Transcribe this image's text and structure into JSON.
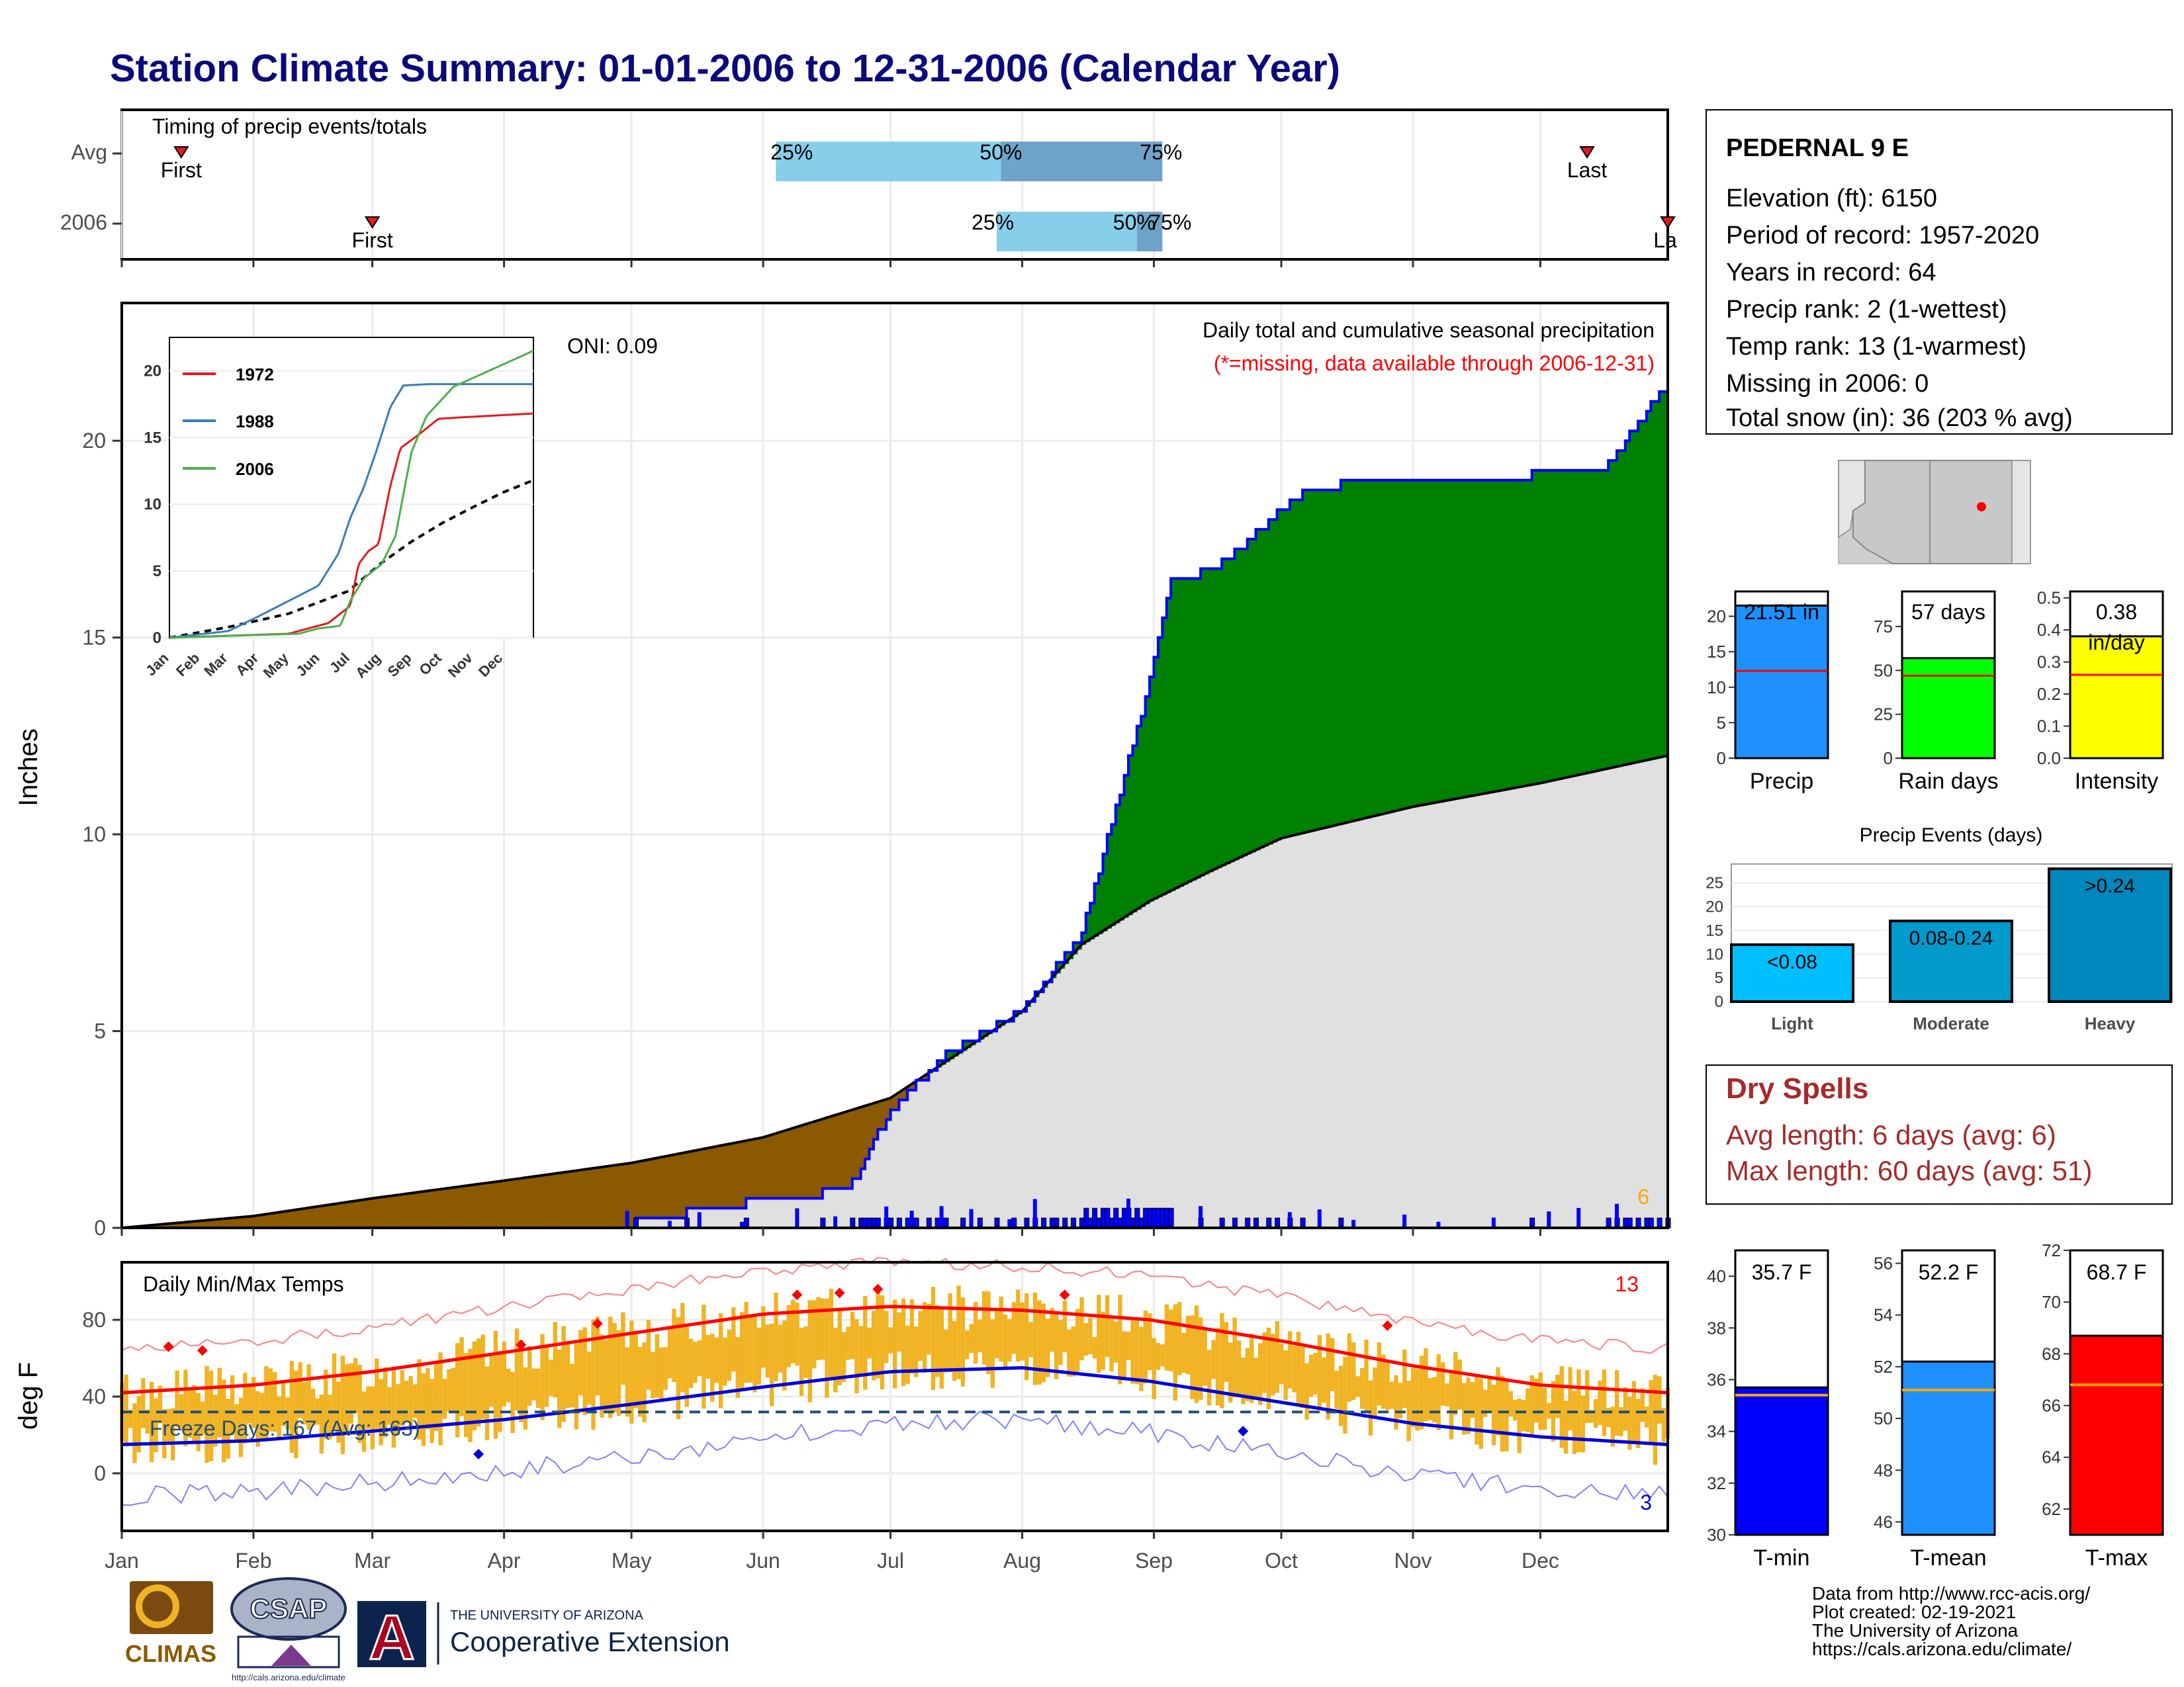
{
  "title": "Station Climate Summary: 01-01-2006 to 12-31-2006 (Calendar Year)",
  "station": {
    "name": "PEDERNAL 9 E",
    "lines": [
      "Elevation (ft): 6150",
      "Period of record: 1957-2020",
      "Years in record: 64",
      "Precip rank: 2 (1-wettest)",
      "Temp rank: 13 (1-warmest)",
      "Missing in 2006: 0",
      "Total snow (in): 36 (203 % avg)"
    ]
  },
  "months": [
    "Jan",
    "Feb",
    "Mar",
    "Apr",
    "May",
    "Jun",
    "Jul",
    "Aug",
    "Sep",
    "Oct",
    "Nov",
    "Dec"
  ],
  "timing": {
    "title": "Timing of precip events/totals",
    "row_labels": [
      "Avg",
      "2006"
    ],
    "first_label": "First",
    "last_label": "Last",
    "last_label_cut": "La",
    "avg": {
      "first_day": 15,
      "last_day": 346,
      "p25_day": 155,
      "p50_day": 208,
      "p75_day": 246
    },
    "year": {
      "first_day": 60,
      "last_day": 365,
      "p25_day": 207,
      "p50_day": 240,
      "p75_day": 246
    },
    "pct_labels": [
      "25%",
      "50%",
      "75%"
    ],
    "colors": {
      "light": "#87ceeb",
      "mid": "#6fa3c9",
      "marker": "#e31a1c"
    }
  },
  "precip_panel": {
    "ylabel": "Inches",
    "yticks": [
      0,
      5,
      10,
      15,
      20
    ],
    "ymax": 23.5,
    "header": "Daily total and cumulative seasonal precipitation",
    "missing_note": "(*=missing, data available through 2006-12-31)",
    "oni": "ONI: 0.09",
    "count_label": "6",
    "colors": {
      "above": "#008000",
      "below": "#8b5a00",
      "normal": "#e0e0e0",
      "observed": "#0000ff",
      "count": "#ffa500",
      "missing_note": "#ff0000"
    }
  },
  "inset": {
    "xlabels": [
      "Jan",
      "Feb",
      "Mar",
      "Apr",
      "May",
      "Jun",
      "Jul",
      "Aug",
      "Sep",
      "Oct",
      "Nov",
      "Dec"
    ],
    "yticks": [
      0,
      5,
      10,
      15,
      20
    ],
    "legend": [
      {
        "year": "1972",
        "color": "#e31a1c"
      },
      {
        "year": "1988",
        "color": "#377eb8"
      },
      {
        "year": "2006",
        "color": "#4daf4a"
      }
    ]
  },
  "temp_panel": {
    "ylabel": "deg F",
    "title": "Daily Min/Max Temps",
    "yticks": [
      0,
      40,
      80
    ],
    "freeze_text": "Freeze Days: 167 (Avg: 163)",
    "record_high_count": "13",
    "record_low_count": "3",
    "colors": {
      "bars": "#f0b323",
      "max_line": "#ff0000",
      "min_line": "#0000dd",
      "freeze_line": "#1f4e79"
    }
  },
  "bar_panels": [
    {
      "key": "precip",
      "label": "Precip",
      "value_text": "21.51 in",
      "value": 21.51,
      "avg": 12.3,
      "ymax": 23.5,
      "yticks": [
        "0",
        "5",
        "10",
        "15",
        "20"
      ],
      "ytick_vals": [
        0,
        5,
        10,
        15,
        20
      ],
      "color": "#1e90ff"
    },
    {
      "key": "raindays",
      "label": "Rain days",
      "value_text": "57 days",
      "value": 57,
      "avg": 47,
      "ymax": 95,
      "yticks": [
        "0",
        "25",
        "50",
        "75"
      ],
      "ytick_vals": [
        0,
        25,
        50,
        75
      ],
      "color": "#00ff00"
    },
    {
      "key": "intensity",
      "label": "Intensity",
      "value_text": "0.38",
      "value_text2": "in/day",
      "value": 0.38,
      "avg": 0.26,
      "ymax": 0.52,
      "yticks": [
        "0.0",
        "0.1",
        "0.2",
        "0.3",
        "0.4",
        "0.5"
      ],
      "ytick_vals": [
        0,
        0.1,
        0.2,
        0.3,
        0.4,
        0.5
      ],
      "color": "#ffff00"
    }
  ],
  "events": {
    "title": "Precip Events (days)",
    "yticks": [
      "0",
      "5",
      "10",
      "15",
      "20",
      "25"
    ],
    "categories": [
      "Light",
      "Moderate",
      "Heavy"
    ],
    "bar_labels": [
      "<0.08",
      "0.08-0.24",
      ">0.24"
    ],
    "values": [
      12,
      17,
      28
    ],
    "colors": [
      "#00bfff",
      "#009acd",
      "#0087bd"
    ]
  },
  "dry_spells": {
    "title": "Dry Spells",
    "avg_line": "Avg length: 6 days (avg: 6)",
    "max_line": "Max length: 60 days (avg: 51)",
    "color": "#a52a2a"
  },
  "temp_bars": [
    {
      "label": "T-min",
      "value_text": "35.7 F",
      "value": 35.7,
      "avg": 35.4,
      "ymin": 30,
      "ymax": 41,
      "yticks": [
        "30",
        "32",
        "34",
        "36",
        "38",
        "40"
      ],
      "ytick_vals": [
        30,
        32,
        34,
        36,
        38,
        40
      ],
      "color": "#0000ff"
    },
    {
      "label": "T-mean",
      "value_text": "52.2 F",
      "value": 52.2,
      "avg": 51.1,
      "ymin": 45.5,
      "ymax": 56.5,
      "yticks": [
        "46",
        "48",
        "50",
        "52",
        "54",
        "56"
      ],
      "ytick_vals": [
        46,
        48,
        50,
        52,
        54,
        56
      ],
      "color": "#1e90ff"
    },
    {
      "label": "T-max",
      "value_text": "68.7 F",
      "value": 68.7,
      "avg": 66.8,
      "ymin": 61,
      "ymax": 72,
      "yticks": [
        "62",
        "64",
        "66",
        "68",
        "70",
        "72"
      ],
      "ytick_vals": [
        62,
        64,
        66,
        68,
        70,
        72
      ],
      "color": "#ff0000"
    }
  ],
  "footer": {
    "lines": [
      "Data from http://www.rcc-acis.org/",
      "Plot created: 02-19-2021",
      "The University of Arizona",
      "https://cals.arizona.edu/climate/"
    ],
    "logo_climas": "CLIMAS",
    "logo_csap": "CSAP",
    "logo_csap_url": "http://cals.arizona.edu/climate",
    "logo_ua": "A",
    "ua_small": "THE UNIVERSITY OF ARIZONA",
    "ua_large": "Cooperative Extension"
  },
  "chart_data": [
    {
      "type": "area",
      "title": "Daily total and cumulative seasonal precipitation",
      "ylabel": "Inches",
      "ylim": [
        0,
        23.5
      ],
      "series": [
        {
          "name": "",
          "x": [
            1,
            32,
            60,
            91,
            121,
            130,
            152,
            172,
            182,
            196,
            213,
            227,
            243,
            248,
            258,
            280,
            300,
            330,
            350,
            355,
            365
          ],
          "values": [
            0,
            0,
            0,
            0.1,
            0.12,
            0.3,
            0.72,
            0.95,
            3.0,
            4.5,
            5.5,
            7.5,
            13.9,
            16.5,
            16.7,
            18.8,
            19.0,
            19.1,
            19.3,
            20.0,
            21.5
          ]
        },
        {
          "name": "",
          "x": [
            1,
            32,
            60,
            91,
            121,
            152,
            182,
            213,
            227,
            243,
            258,
            274,
            305,
            335,
            365
          ],
          "values": [
            0,
            0.3,
            0.75,
            1.2,
            1.65,
            2.3,
            3.3,
            5.5,
            7.2,
            8.3,
            9.1,
            9.9,
            10.7,
            11.3,
            12.0
          ]
        }
      ]
    },
    {
      "type": "line",
      "title": "Daily Min/Max Temps",
      "ylabel": "deg F",
      "ylim": [
        -30,
        110
      ],
      "series": [
        {
          "name": "",
          "x": [
            1,
            32,
            60,
            91,
            121,
            152,
            182,
            213,
            243,
            274,
            305,
            335,
            365
          ],
          "values": [
            42,
            46,
            53,
            63,
            73,
            83,
            87,
            85,
            80,
            69,
            56,
            46,
            42
          ]
        },
        {
          "name": "",
          "x": [
            1,
            32,
            60,
            91,
            121,
            152,
            182,
            213,
            243,
            274,
            305,
            335,
            365
          ],
          "values": [
            15,
            17,
            22,
            28,
            36,
            45,
            53,
            55,
            48,
            37,
            26,
            19,
            15
          ]
        }
      ]
    },
    {
      "type": "bar",
      "title": "Precip Events (days)",
      "categories": [
        "Light",
        "Moderate",
        "Heavy"
      ],
      "values": [
        12,
        17,
        28
      ]
    }
  ]
}
